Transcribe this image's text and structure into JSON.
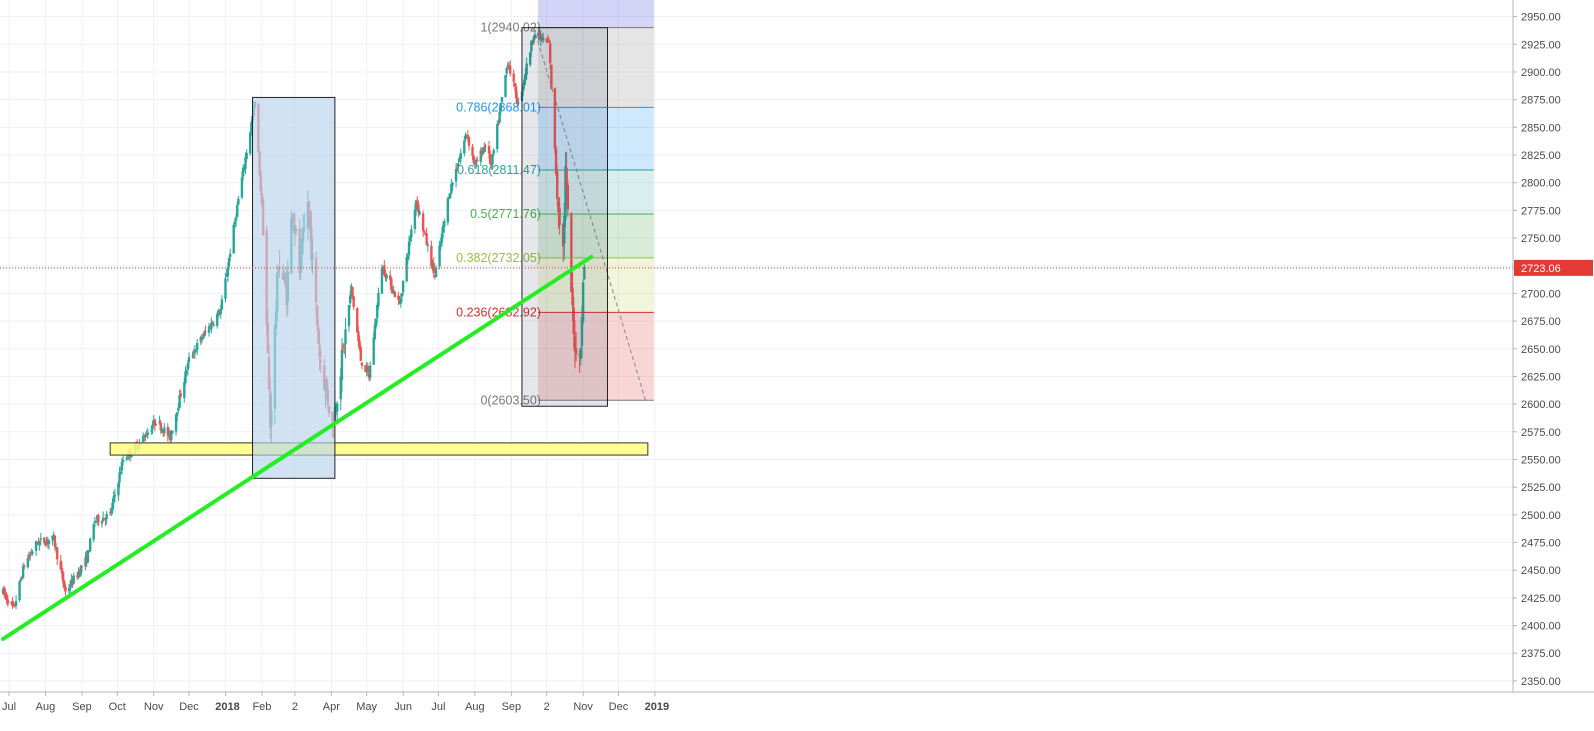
{
  "chart_data": {
    "type": "candlestick",
    "title": "",
    "xlabel": "",
    "ylabel": "",
    "ylim": [
      2340,
      2965
    ],
    "grid": true,
    "y_ticks": [
      2350,
      2375,
      2400,
      2425,
      2450,
      2475,
      2500,
      2525,
      2550,
      2575,
      2600,
      2625,
      2650,
      2675,
      2700,
      2725,
      2750,
      2775,
      2800,
      2825,
      2850,
      2875,
      2900,
      2925,
      2950
    ],
    "x_ticks": [
      {
        "label": "Jul",
        "date": "2017-07-01"
      },
      {
        "label": "Aug",
        "date": "2017-08-01"
      },
      {
        "label": "Sep",
        "date": "2017-09-01"
      },
      {
        "label": "Oct",
        "date": "2017-10-01"
      },
      {
        "label": "Nov",
        "date": "2017-11-01"
      },
      {
        "label": "Dec",
        "date": "2017-12-01"
      },
      {
        "label": "2018",
        "date": "2018-01-01",
        "bold": true
      },
      {
        "label": "Feb",
        "date": "2018-02-01"
      },
      {
        "label": "2",
        "date": "2018-03-01"
      },
      {
        "label": "Apr",
        "date": "2018-04-01"
      },
      {
        "label": "May",
        "date": "2018-05-01"
      },
      {
        "label": "Jun",
        "date": "2018-06-01"
      },
      {
        "label": "Jul",
        "date": "2018-07-01"
      },
      {
        "label": "Aug",
        "date": "2018-08-01"
      },
      {
        "label": "Sep",
        "date": "2018-09-01"
      },
      {
        "label": "2",
        "date": "2018-10-01"
      },
      {
        "label": "Nov",
        "date": "2018-11-01"
      },
      {
        "label": "Dec",
        "date": "2018-12-01"
      },
      {
        "label": "2019",
        "date": "2019-01-01",
        "bold": true
      }
    ],
    "price_path": [
      [
        "2017-06-26",
        2430
      ],
      [
        "2017-07-05",
        2415
      ],
      [
        "2017-07-14",
        2455
      ],
      [
        "2017-07-25",
        2475
      ],
      [
        "2017-08-08",
        2478
      ],
      [
        "2017-08-18",
        2430
      ],
      [
        "2017-08-24",
        2440
      ],
      [
        "2017-09-05",
        2460
      ],
      [
        "2017-09-12",
        2495
      ],
      [
        "2017-09-25",
        2500
      ],
      [
        "2017-10-06",
        2550
      ],
      [
        "2017-10-20",
        2565
      ],
      [
        "2017-11-03",
        2585
      ],
      [
        "2017-11-15",
        2570
      ],
      [
        "2017-12-01",
        2640
      ],
      [
        "2017-12-12",
        2660
      ],
      [
        "2017-12-28",
        2685
      ],
      [
        "2018-01-12",
        2785
      ],
      [
        "2018-01-26",
        2872
      ],
      [
        "2018-02-02",
        2762
      ],
      [
        "2018-02-08",
        2581
      ],
      [
        "2018-02-15",
        2730
      ],
      [
        "2018-02-22",
        2700
      ],
      [
        "2018-02-27",
        2780
      ],
      [
        "2018-03-05",
        2720
      ],
      [
        "2018-03-12",
        2783
      ],
      [
        "2018-03-22",
        2645
      ],
      [
        "2018-04-02",
        2581
      ],
      [
        "2018-04-10",
        2640
      ],
      [
        "2018-04-18",
        2705
      ],
      [
        "2018-04-26",
        2640
      ],
      [
        "2018-05-03",
        2625
      ],
      [
        "2018-05-14",
        2725
      ],
      [
        "2018-05-29",
        2690
      ],
      [
        "2018-06-12",
        2785
      ],
      [
        "2018-06-28",
        2715
      ],
      [
        "2018-07-10",
        2790
      ],
      [
        "2018-07-25",
        2845
      ],
      [
        "2018-08-01",
        2815
      ],
      [
        "2018-08-10",
        2835
      ],
      [
        "2018-08-15",
        2815
      ],
      [
        "2018-08-29",
        2910
      ],
      [
        "2018-09-07",
        2870
      ],
      [
        "2018-09-20",
        2935
      ],
      [
        "2018-10-03",
        2925
      ],
      [
        "2018-10-10",
        2790
      ],
      [
        "2018-10-15",
        2740
      ],
      [
        "2018-10-17",
        2810
      ],
      [
        "2018-10-24",
        2660
      ],
      [
        "2018-10-29",
        2640
      ],
      [
        "2018-11-02",
        2725
      ]
    ],
    "current_price": {
      "value": 2723.06,
      "label": "2723.06"
    },
    "trendline": {
      "from": [
        "2017-06-26",
        2388
      ],
      "to": [
        "2018-11-08",
        2733
      ]
    },
    "support_zone": {
      "from": "2017-09-25",
      "to": "2018-12-26",
      "low": 2554,
      "high": 2565
    },
    "highlight_box": {
      "from": "2018-01-24",
      "to": "2018-04-04",
      "low": 2533,
      "high": 2877
    },
    "fibonacci": {
      "from": "2018-09-10",
      "to": "2018-12-26",
      "box_to": "2018-11-20",
      "anchor_high": {
        "date": "2018-09-20",
        "value": 2940.02
      },
      "anchor_low": {
        "date": "2018-12-24",
        "value": 2603.5
      },
      "levels": [
        {
          "ratio": "1",
          "value": 2940.02,
          "label": "1(2940.02)",
          "color": "#787878"
        },
        {
          "ratio": "0.786",
          "value": 2868.01,
          "label": "0.786(2868.01)",
          "color": "#2196f3"
        },
        {
          "ratio": "0.618",
          "value": 2811.47,
          "label": "0.618(2811.47)",
          "color": "#26a69a"
        },
        {
          "ratio": "0.5",
          "value": 2771.76,
          "label": "0.5(2771.76)",
          "color": "#4caf50"
        },
        {
          "ratio": "0.382",
          "value": 2732.05,
          "label": "0.382(2732.05)",
          "color": "#9abf3c"
        },
        {
          "ratio": "0.236",
          "value": 2682.92,
          "label": "0.236(2682.92)",
          "color": "#d32f2f"
        },
        {
          "ratio": "0",
          "value": 2603.5,
          "label": "0(2603.50)",
          "color": "#787878"
        }
      ]
    },
    "colors": {
      "up_candle": "#26a69a",
      "down_candle": "#ef5350",
      "trendline": "#22ee22",
      "support_zone": "#ffff80",
      "highlight_box": "#b8d4ec",
      "price_line": "#e53935",
      "grid": "#eef1f5"
    }
  }
}
